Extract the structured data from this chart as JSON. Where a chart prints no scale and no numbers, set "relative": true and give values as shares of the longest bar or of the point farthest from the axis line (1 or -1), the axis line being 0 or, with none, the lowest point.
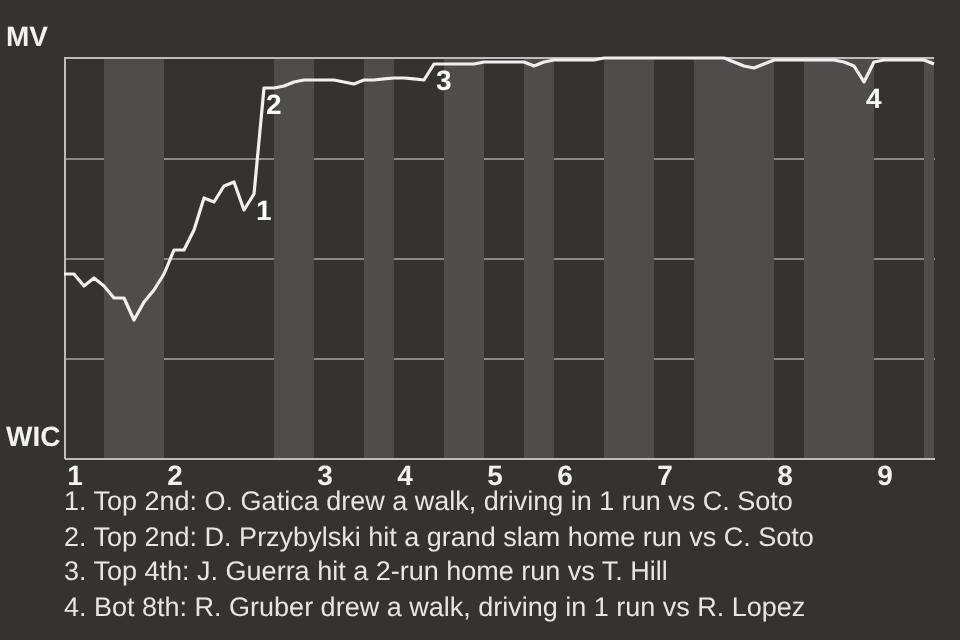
{
  "chart_data": {
    "type": "line",
    "relative": true,
    "categories": [
      null,
      "1",
      null,
      null,
      null,
      null,
      null,
      null,
      null,
      null,
      null,
      "2",
      null,
      null,
      null,
      null,
      null,
      null,
      null,
      null,
      null,
      null,
      null,
      null,
      null,
      null,
      "3",
      null,
      null,
      null,
      null,
      null,
      null,
      null,
      "4",
      null,
      null,
      null,
      null,
      null,
      null,
      null,
      null,
      "5",
      null,
      null,
      null,
      null,
      null,
      null,
      "6",
      null,
      null,
      null,
      null,
      null,
      null,
      null,
      null,
      null,
      "7",
      null,
      null,
      null,
      null,
      null,
      null,
      null,
      null,
      null,
      null,
      null,
      "8",
      null,
      null,
      null,
      null,
      null,
      null,
      null,
      null,
      null,
      "9",
      null,
      null,
      null,
      null,
      null
    ],
    "series": [
      {
        "color": "#f0f0f0",
        "values": [
          0.46,
          0.46,
          0.43,
          0.45,
          0.43,
          0.4,
          0.4,
          0.345,
          0.39,
          0.42,
          0.46,
          0.52,
          0.52,
          0.57,
          0.65,
          0.64,
          0.68,
          0.69,
          0.62,
          0.66,
          0.925,
          0.925,
          0.93,
          0.94,
          0.945,
          0.945,
          0.945,
          0.945,
          0.94,
          0.935,
          0.945,
          0.945,
          0.948,
          0.95,
          0.95,
          0.948,
          0.945,
          0.985,
          0.985,
          0.985,
          0.985,
          0.985,
          0.99,
          0.99,
          0.99,
          0.99,
          0.99,
          0.98,
          0.99,
          0.995,
          0.995,
          0.995,
          0.995,
          0.995,
          1,
          1,
          1,
          1,
          1,
          1,
          1,
          1,
          1,
          1,
          1,
          1,
          1,
          0.99,
          0.98,
          0.975,
          0.985,
          0.995,
          0.995,
          0.995,
          0.995,
          0.995,
          0.995,
          0.995,
          0.99,
          0.98,
          0.94,
          0.99,
          0.995,
          0.995,
          0.995,
          0.995,
          0.995,
          0.985
        ]
      }
    ],
    "grid": "y",
    "annotations": [
      "MV",
      "WIC",
      {
        "text": "1",
        "y": 0.66
      },
      {
        "text": "2",
        "y": 0.925
      },
      {
        "text": "3",
        "y": 0.985
      },
      {
        "text": "4",
        "y": 0.94
      },
      "1. Top 2nd: O. Gatica drew a walk, driving in 1 run vs C. Soto",
      "2. Top 2nd: D. Przybylski hit a grand slam home run vs C. Soto",
      "3. Top 4th: J. Guerra hit a 2-run home run vs T. Hill",
      "4. Bot 8th: R. Gruber drew a walk, driving in 1 run vs R. Lopez"
    ]
  }
}
